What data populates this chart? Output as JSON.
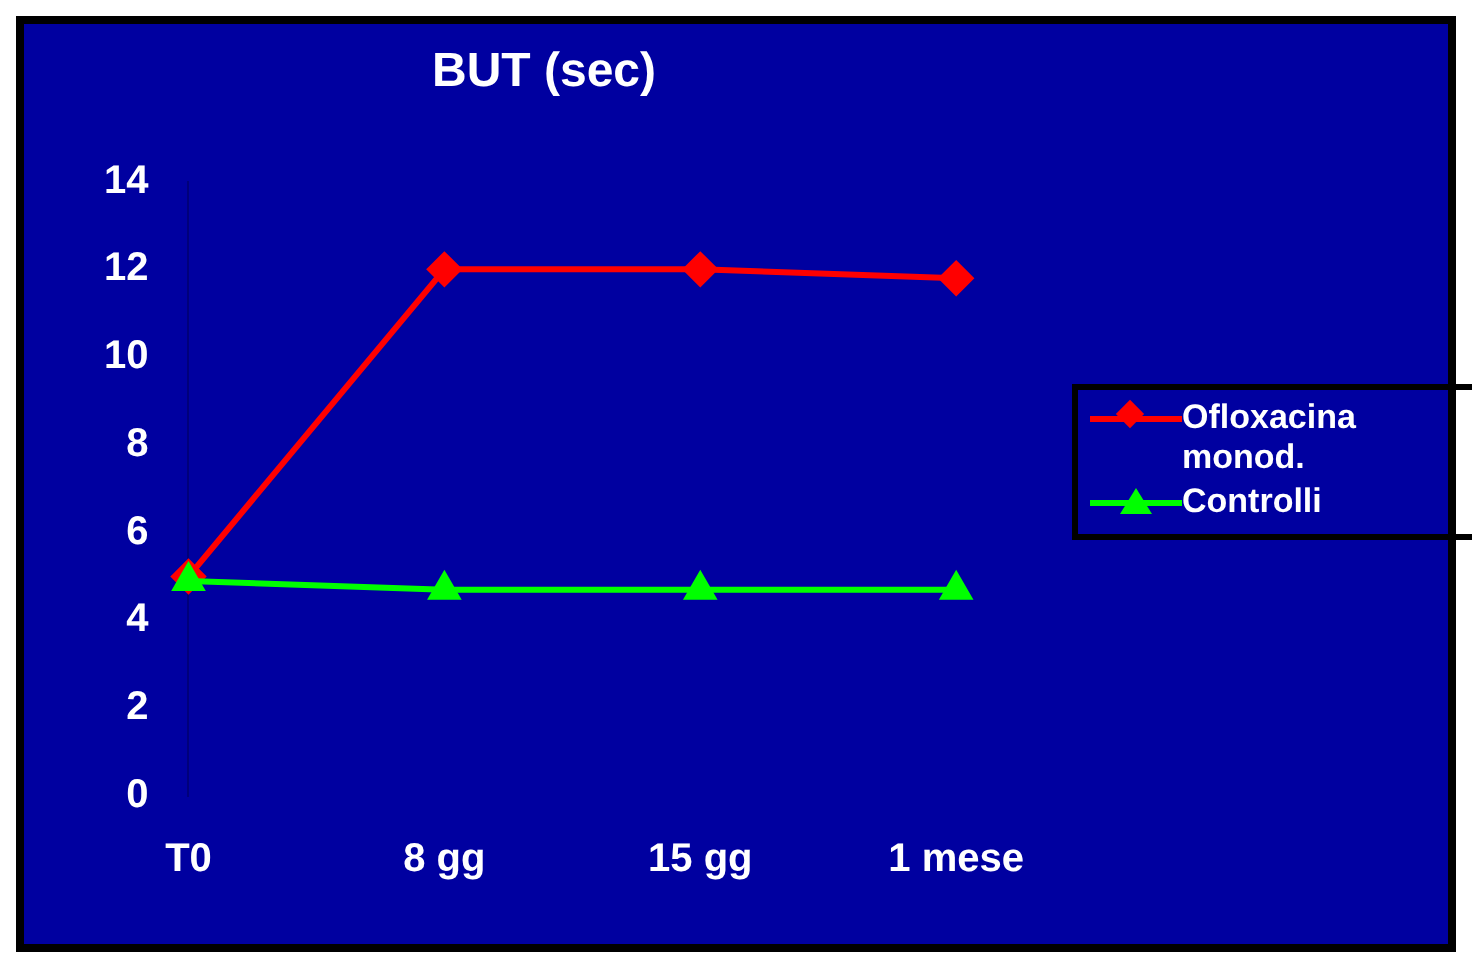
{
  "chart_data": {
    "type": "line",
    "title": "BUT (sec)",
    "categories": [
      "T0",
      "8 gg",
      "15 gg",
      "1 mese"
    ],
    "series": [
      {
        "name": "Ofloxacina monod.",
        "color": "#ff0000",
        "marker": "diamond",
        "values": [
          5,
          12,
          12,
          11.8
        ]
      },
      {
        "name": "Controlli",
        "color": "#00ff00",
        "marker": "triangle",
        "values": [
          4.9,
          4.7,
          4.7,
          4.7
        ]
      }
    ],
    "ylim": [
      0,
      14
    ],
    "yticks": [
      0,
      2,
      4,
      6,
      8,
      10,
      12,
      14
    ],
    "grid": false,
    "legend": "right",
    "line_style": "solid"
  }
}
